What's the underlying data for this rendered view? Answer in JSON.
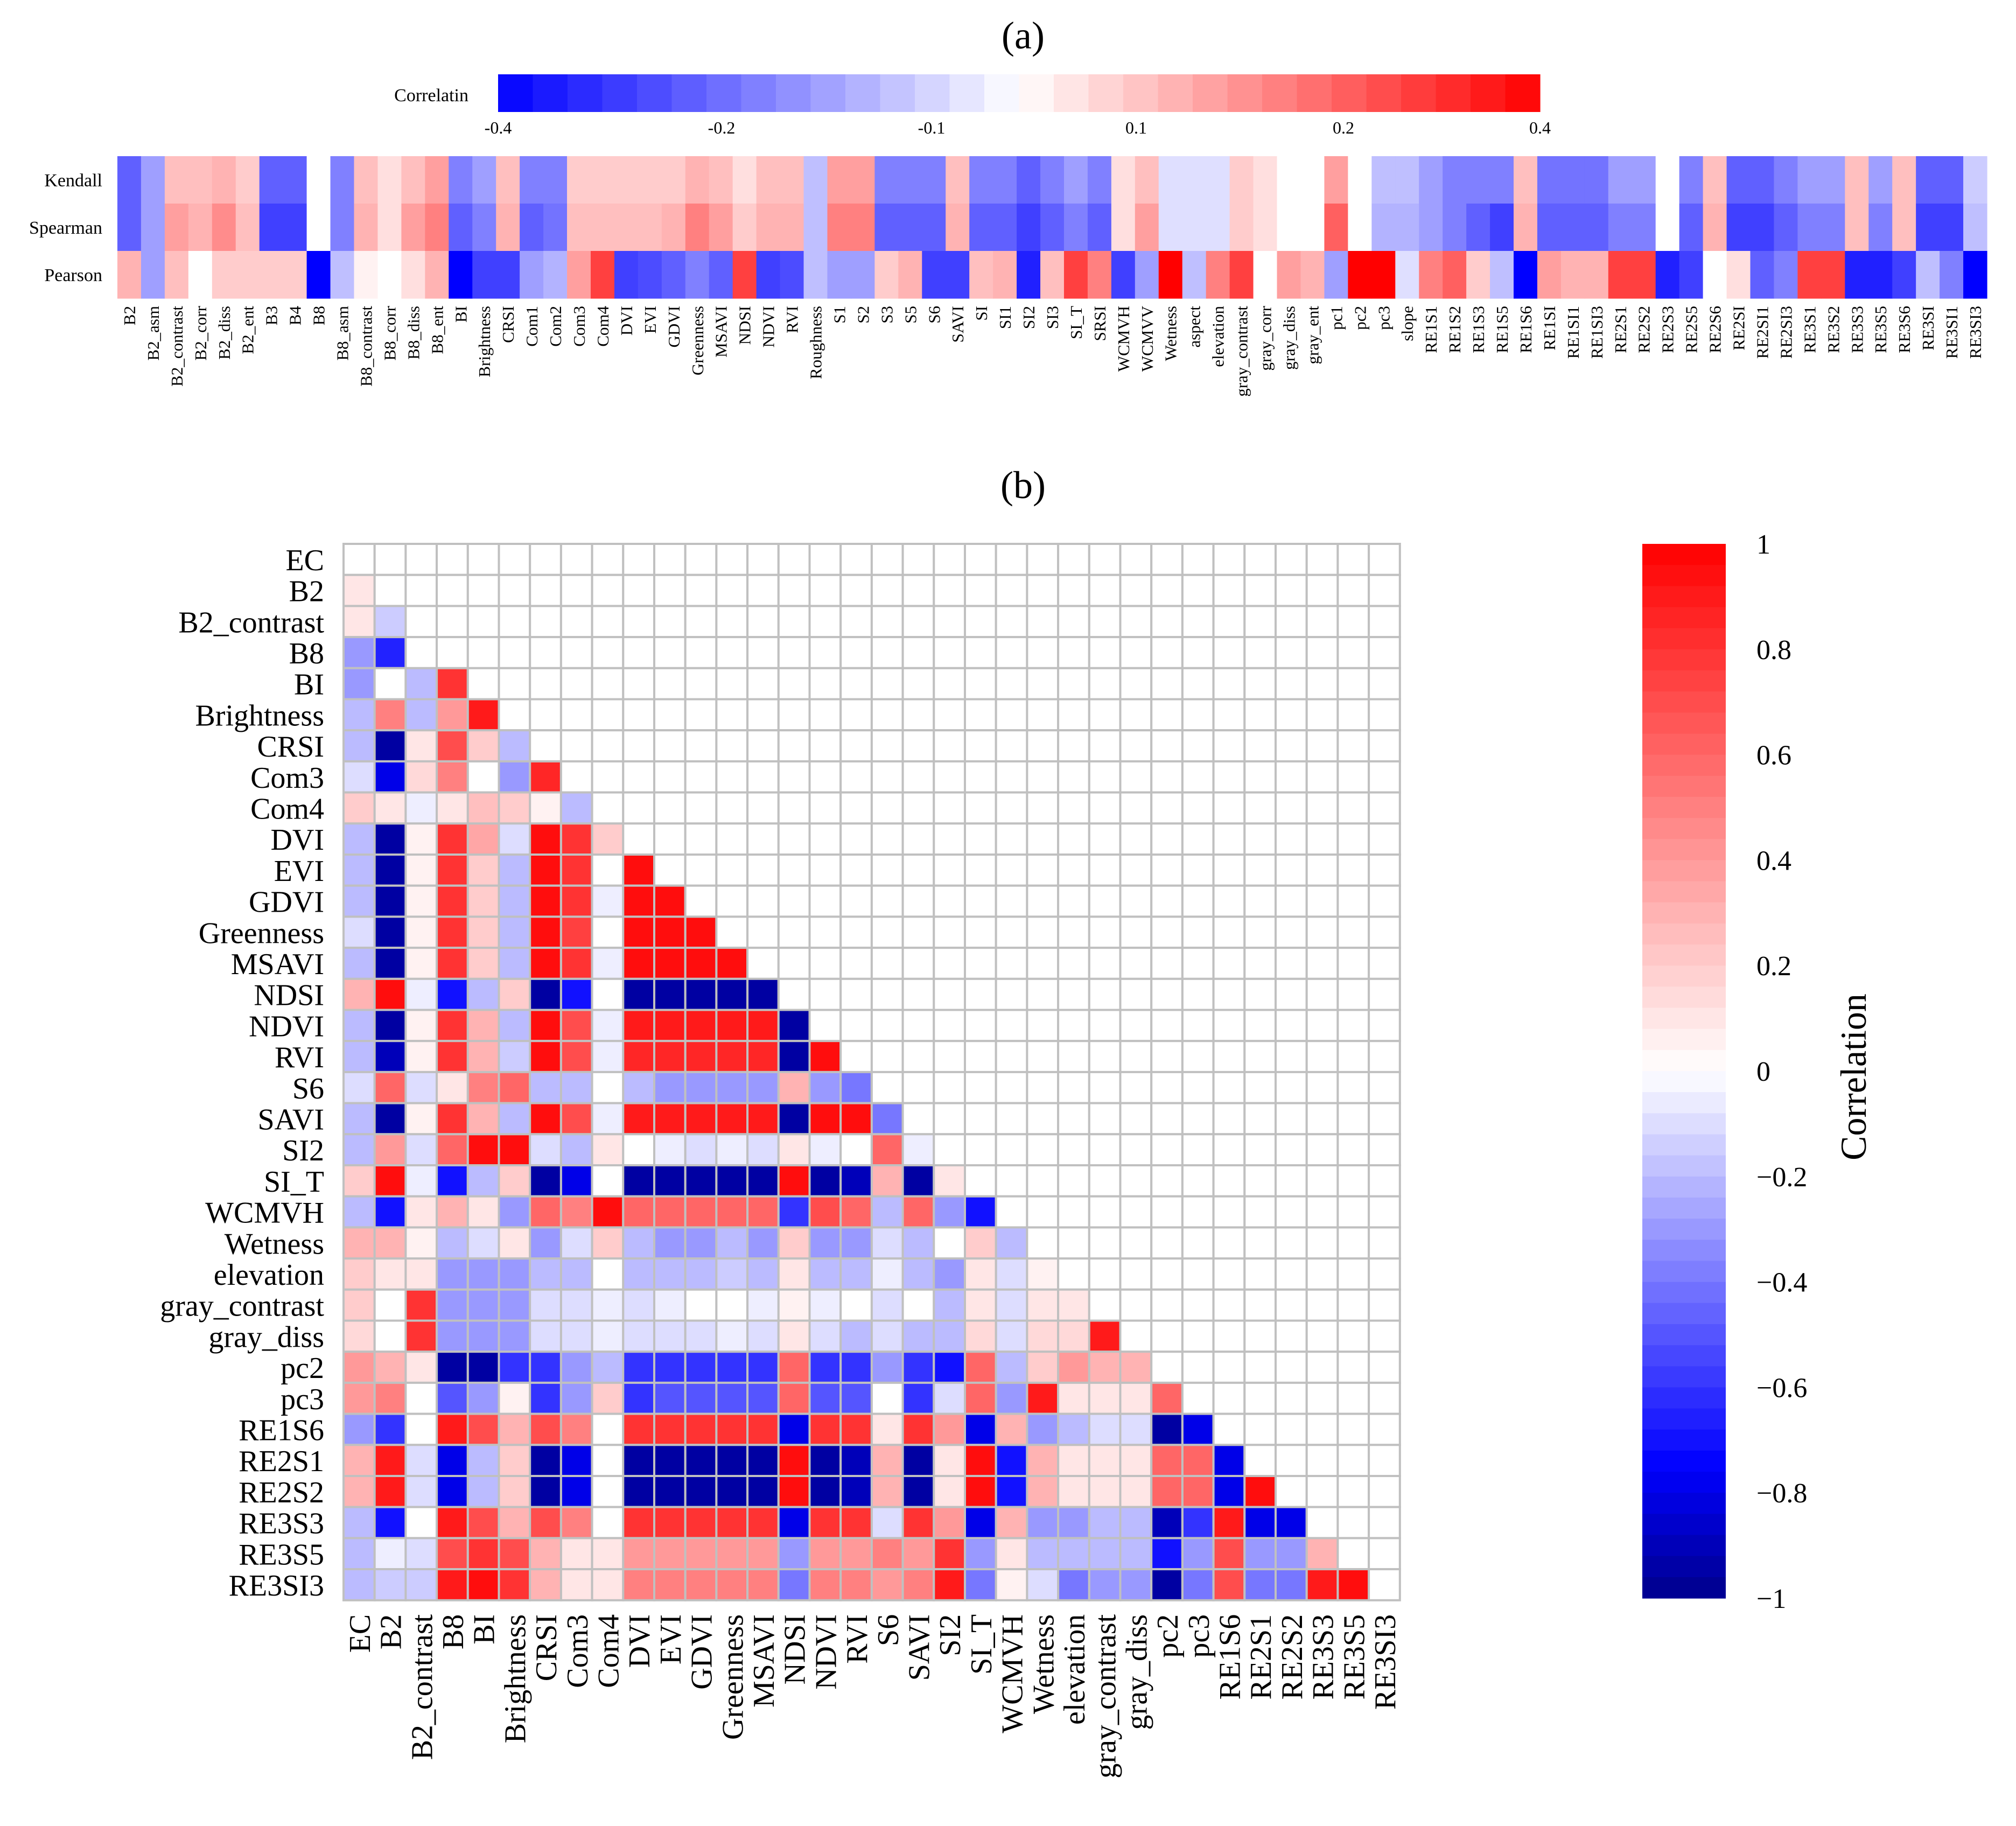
{
  "panel_a": {
    "label": "(a)",
    "colorbar_label": "Correlatin",
    "colorbar_ticks": [
      "-0.4",
      "-0.2",
      "-0.1",
      "0.1",
      "0.2",
      "0.4"
    ]
  },
  "panel_b": {
    "label": "(b)",
    "colorbar_label": "Correlation",
    "colorbar_ticks": [
      "1",
      "0.8",
      "0.6",
      "0.4",
      "0.2",
      "0",
      "−0.2",
      "−0.4",
      "−0.6",
      "−0.8",
      "−1"
    ]
  },
  "colors": {
    "negative": "#00008b",
    "mid_negative": "#0000ff",
    "zero": "#ffffff",
    "positive": "#ff0000",
    "grid": "#c0c0c0"
  },
  "chart_data": [
    {
      "type": "heatmap",
      "title": "(a)",
      "legend_label": "Correlatin",
      "vlim": [
        -0.4,
        0.4
      ],
      "rows": [
        "Kendall",
        "Spearman",
        "Pearson"
      ],
      "columns": [
        "B2",
        "B2_asm",
        "B2_contrast",
        "B2_corr",
        "B2_diss",
        "B2_ent",
        "B3",
        "B4",
        "B8",
        "B8_asm",
        "B8_contrast",
        "B8_corr",
        "B8_diss",
        "B8_ent",
        "BI",
        "Brightness",
        "CRSI",
        "Com1",
        "Com2",
        "Com3",
        "Com4",
        "DVI",
        "EVI",
        "GDVI",
        "Greenness",
        "MSAVI",
        "NDSI",
        "NDVI",
        "RVI",
        "Roughness",
        "S1",
        "S2",
        "S3",
        "S5",
        "S6",
        "SAVI",
        "SI",
        "SI1",
        "SI2",
        "SI3",
        "SI_T",
        "SRSI",
        "WCMVH",
        "WCMVV",
        "Wetness",
        "aspect",
        "elevation",
        "gray_contrast",
        "gray_corr",
        "gray_diss",
        "gray_ent",
        "pc1",
        "pc2",
        "pc3",
        "slope",
        "RE1S1",
        "RE1S2",
        "RE1S3",
        "RE1S5",
        "RE1S6",
        "RE1SI",
        "RE1SI1",
        "RE1SI3",
        "RE2S1",
        "RE2S2",
        "RE2S3",
        "RE2S5",
        "RE2S6",
        "RE2SI",
        "RE2SI1",
        "RE2SI3",
        "RE3S1",
        "RE3S2",
        "RE3S3",
        "RE3S5",
        "RE3S6",
        "RE3SI",
        "RE3SI1",
        "RE3SI3"
      ],
      "values": [
        [
          -0.25,
          -0.15,
          0.1,
          0.1,
          0.12,
          0.08,
          -0.25,
          -0.25,
          0.0,
          -0.2,
          0.1,
          0.05,
          0.1,
          0.15,
          -0.2,
          -0.15,
          0.1,
          -0.2,
          -0.2,
          0.08,
          0.08,
          0.08,
          0.08,
          0.08,
          0.12,
          0.1,
          0.05,
          0.1,
          0.1,
          -0.1,
          0.15,
          0.15,
          -0.2,
          -0.2,
          -0.2,
          0.1,
          -0.2,
          -0.2,
          -0.25,
          -0.2,
          -0.15,
          -0.2,
          0.05,
          0.1,
          -0.05,
          -0.05,
          -0.05,
          0.08,
          0.05,
          0.0,
          0.0,
          0.15,
          0.0,
          -0.1,
          -0.1,
          -0.15,
          -0.2,
          -0.2,
          -0.2,
          0.1,
          -0.22,
          -0.22,
          -0.22,
          -0.15,
          -0.15,
          0.0,
          -0.2,
          0.1,
          -0.25,
          -0.25,
          -0.2,
          -0.15,
          -0.15,
          0.1,
          -0.15,
          0.1,
          -0.25,
          -0.25,
          -0.08
        ],
        [
          -0.25,
          -0.15,
          0.15,
          0.12,
          0.18,
          0.1,
          -0.3,
          -0.3,
          0.0,
          -0.2,
          0.12,
          0.05,
          0.15,
          0.2,
          -0.25,
          -0.2,
          0.12,
          -0.25,
          -0.22,
          0.1,
          0.1,
          0.1,
          0.1,
          0.12,
          0.2,
          0.15,
          0.08,
          0.12,
          0.12,
          -0.1,
          0.2,
          0.2,
          -0.25,
          -0.25,
          -0.25,
          0.12,
          -0.25,
          -0.25,
          -0.3,
          -0.25,
          -0.2,
          -0.25,
          0.05,
          0.15,
          -0.05,
          -0.05,
          -0.05,
          0.08,
          0.05,
          0.0,
          0.0,
          0.25,
          0.0,
          -0.12,
          -0.12,
          -0.15,
          -0.2,
          -0.25,
          -0.3,
          0.12,
          -0.25,
          -0.25,
          -0.25,
          -0.2,
          -0.2,
          0.0,
          -0.25,
          0.12,
          -0.3,
          -0.3,
          -0.25,
          -0.2,
          -0.2,
          0.1,
          -0.2,
          0.1,
          -0.3,
          -0.3,
          -0.1
        ],
        [
          0.12,
          -0.15,
          0.1,
          0.0,
          0.08,
          0.08,
          0.08,
          0.08,
          -0.4,
          -0.1,
          0.02,
          0.0,
          0.05,
          0.12,
          -0.4,
          -0.3,
          -0.3,
          -0.15,
          -0.12,
          0.15,
          0.3,
          -0.3,
          -0.28,
          -0.25,
          -0.2,
          -0.25,
          0.3,
          -0.3,
          -0.28,
          -0.1,
          -0.15,
          -0.15,
          0.08,
          0.12,
          -0.3,
          -0.3,
          0.1,
          0.12,
          -0.35,
          0.1,
          0.3,
          0.2,
          -0.3,
          -0.15,
          0.4,
          -0.1,
          0.2,
          0.3,
          0.0,
          0.15,
          0.12,
          -0.15,
          0.4,
          0.4,
          -0.05,
          0.2,
          0.25,
          0.08,
          -0.1,
          -0.4,
          0.15,
          0.12,
          0.12,
          0.3,
          0.3,
          -0.35,
          -0.3,
          0.0,
          0.05,
          -0.25,
          -0.2,
          0.3,
          0.3,
          -0.35,
          -0.35,
          -0.3,
          -0.1,
          -0.2,
          -0.4
        ]
      ]
    },
    {
      "type": "heatmap",
      "title": "(b)",
      "legend_label": "Correlation",
      "vlim": [
        -1,
        1
      ],
      "labels": [
        "EC",
        "B2",
        "B2_contrast",
        "B8",
        "BI",
        "Brightness",
        "CRSI",
        "Com3",
        "Com4",
        "DVI",
        "EVI",
        "GDVI",
        "Greenness",
        "MSAVI",
        "NDSI",
        "NDVI",
        "RVI",
        "S6",
        "SAVI",
        "SI2",
        "SI_T",
        "WCMVH",
        "Wetness",
        "elevation",
        "gray_contrast",
        "gray_diss",
        "pc2",
        "pc3",
        "RE1S6",
        "RE2S1",
        "RE2S2",
        "RE3S3",
        "RE3S5",
        "RE3SI3"
      ],
      "values_lower_triangle": [
        [],
        [
          0.1
        ],
        [
          0.1,
          -0.15
        ],
        [
          -0.3,
          -0.65,
          0.0
        ],
        [
          -0.3,
          0.0,
          -0.2,
          0.8
        ],
        [
          -0.2,
          0.5,
          -0.2,
          0.4,
          0.9
        ],
        [
          -0.2,
          -0.95,
          0.1,
          0.7,
          0.2,
          -0.2
        ],
        [
          -0.1,
          -0.8,
          0.15,
          0.5,
          0.0,
          -0.3,
          0.85
        ],
        [
          0.2,
          0.1,
          -0.05,
          0.1,
          0.25,
          0.2,
          0.05,
          -0.2
        ],
        [
          -0.2,
          -0.95,
          0.05,
          0.8,
          0.35,
          -0.1,
          0.95,
          0.8,
          0.2
        ],
        [
          -0.2,
          -0.95,
          0.05,
          0.8,
          0.2,
          -0.2,
          0.95,
          0.8,
          0.0,
          0.95
        ],
        [
          -0.2,
          -0.95,
          0.05,
          0.8,
          0.2,
          -0.2,
          0.95,
          0.8,
          -0.05,
          0.95,
          0.95
        ],
        [
          -0.1,
          -0.95,
          0.05,
          0.8,
          0.2,
          -0.2,
          0.95,
          0.75,
          0.0,
          0.95,
          0.95,
          0.95
        ],
        [
          -0.2,
          -0.95,
          0.05,
          0.8,
          0.2,
          -0.2,
          0.95,
          0.8,
          -0.05,
          0.95,
          0.95,
          0.95,
          0.95
        ],
        [
          0.3,
          0.95,
          -0.05,
          -0.7,
          -0.2,
          0.2,
          -0.95,
          -0.7,
          0.0,
          -0.95,
          -0.95,
          -0.95,
          -0.95,
          -0.95
        ],
        [
          -0.2,
          -0.95,
          0.05,
          0.8,
          0.3,
          -0.2,
          0.95,
          0.7,
          -0.05,
          0.9,
          0.9,
          0.9,
          0.9,
          0.9,
          -0.95
        ],
        [
          -0.2,
          -0.9,
          0.05,
          0.8,
          0.3,
          -0.15,
          0.95,
          0.7,
          -0.05,
          0.85,
          0.85,
          0.85,
          0.85,
          0.85,
          -0.95,
          0.95
        ],
        [
          -0.1,
          0.6,
          -0.1,
          0.1,
          0.5,
          0.6,
          -0.2,
          -0.2,
          0.0,
          -0.2,
          -0.3,
          -0.3,
          -0.3,
          -0.3,
          0.3,
          -0.3,
          -0.4
        ],
        [
          -0.2,
          -0.95,
          0.05,
          0.8,
          0.3,
          -0.2,
          0.95,
          0.7,
          -0.05,
          0.9,
          0.9,
          0.9,
          0.9,
          0.9,
          -0.95,
          0.95,
          0.95,
          -0.4
        ],
        [
          -0.2,
          0.4,
          -0.1,
          0.6,
          0.95,
          0.95,
          -0.1,
          -0.2,
          0.1,
          0.0,
          -0.05,
          -0.1,
          -0.05,
          -0.1,
          0.1,
          -0.05,
          0.0,
          0.6,
          -0.05
        ],
        [
          0.2,
          0.95,
          -0.05,
          -0.7,
          -0.2,
          0.2,
          -0.95,
          -0.8,
          0.0,
          -0.95,
          -0.95,
          -0.95,
          -0.95,
          -0.95,
          0.95,
          -0.95,
          -0.9,
          0.3,
          -0.95,
          0.1
        ],
        [
          -0.2,
          -0.7,
          0.1,
          0.3,
          0.1,
          -0.3,
          0.6,
          0.5,
          0.95,
          0.6,
          0.6,
          0.6,
          0.6,
          0.6,
          -0.6,
          0.7,
          0.6,
          -0.2,
          0.6,
          -0.3,
          -0.7
        ],
        [
          0.3,
          0.3,
          0.05,
          -0.2,
          -0.1,
          0.1,
          -0.3,
          -0.1,
          0.2,
          -0.2,
          -0.3,
          -0.3,
          -0.2,
          -0.3,
          0.2,
          -0.3,
          -0.3,
          -0.1,
          -0.2,
          0.0,
          0.2,
          -0.2
        ],
        [
          0.2,
          0.1,
          0.1,
          -0.3,
          -0.3,
          -0.3,
          -0.2,
          -0.2,
          0.0,
          -0.2,
          -0.2,
          -0.2,
          -0.15,
          -0.2,
          0.1,
          -0.2,
          -0.2,
          -0.05,
          -0.2,
          -0.3,
          0.1,
          -0.1,
          0.05
        ],
        [
          0.2,
          0.0,
          0.8,
          -0.3,
          -0.3,
          -0.3,
          -0.1,
          -0.1,
          -0.05,
          -0.1,
          -0.05,
          0.0,
          0.0,
          -0.05,
          0.05,
          -0.05,
          0.0,
          -0.1,
          0.0,
          -0.2,
          0.1,
          -0.1,
          0.1,
          0.1
        ],
        [
          0.15,
          0.0,
          0.8,
          -0.3,
          -0.3,
          -0.3,
          -0.1,
          -0.1,
          -0.05,
          -0.1,
          -0.1,
          -0.1,
          -0.05,
          -0.1,
          0.1,
          -0.1,
          -0.2,
          -0.1,
          -0.2,
          -0.2,
          0.15,
          -0.1,
          0.15,
          0.15,
          0.9
        ],
        [
          0.4,
          0.3,
          0.1,
          -0.95,
          -0.95,
          -0.6,
          -0.6,
          -0.3,
          -0.2,
          -0.6,
          -0.6,
          -0.6,
          -0.6,
          -0.6,
          0.6,
          -0.6,
          -0.6,
          -0.3,
          -0.6,
          -0.7,
          0.6,
          -0.2,
          0.2,
          0.4,
          0.3,
          0.3
        ],
        [
          0.4,
          0.5,
          0.0,
          -0.5,
          -0.3,
          0.05,
          -0.6,
          -0.3,
          0.2,
          -0.6,
          -0.5,
          -0.5,
          -0.5,
          -0.5,
          0.6,
          -0.5,
          -0.5,
          0.0,
          -0.6,
          -0.1,
          0.6,
          -0.3,
          0.9,
          0.1,
          0.1,
          0.1,
          0.6
        ],
        [
          -0.3,
          -0.6,
          0.0,
          0.9,
          0.7,
          0.3,
          0.7,
          0.5,
          0.0,
          0.8,
          0.8,
          0.8,
          0.8,
          0.8,
          -0.8,
          0.8,
          0.8,
          0.1,
          0.8,
          0.4,
          -0.8,
          0.3,
          -0.3,
          -0.2,
          -0.1,
          -0.1,
          -0.95,
          -0.8
        ],
        [
          0.3,
          0.9,
          -0.1,
          -0.8,
          -0.2,
          0.2,
          -0.95,
          -0.8,
          0.0,
          -0.95,
          -0.95,
          -0.95,
          -0.95,
          -0.95,
          0.95,
          -0.95,
          -0.9,
          0.3,
          -0.95,
          0.1,
          0.95,
          -0.7,
          0.3,
          0.1,
          0.1,
          0.1,
          0.6,
          0.6,
          -0.8
        ],
        [
          0.3,
          0.9,
          -0.1,
          -0.8,
          -0.2,
          0.2,
          -0.95,
          -0.8,
          0.0,
          -0.95,
          -0.95,
          -0.95,
          -0.95,
          -0.95,
          0.95,
          -0.95,
          -0.9,
          0.3,
          -0.95,
          0.1,
          0.95,
          -0.7,
          0.3,
          0.1,
          0.1,
          0.1,
          0.6,
          0.6,
          -0.8,
          0.95
        ],
        [
          -0.2,
          -0.7,
          0.0,
          0.9,
          0.7,
          0.3,
          0.7,
          0.5,
          0.0,
          0.8,
          0.8,
          0.8,
          0.8,
          0.8,
          -0.8,
          0.8,
          0.8,
          -0.1,
          0.8,
          0.4,
          -0.8,
          0.3,
          -0.3,
          -0.3,
          -0.2,
          -0.2,
          -0.9,
          -0.6,
          0.9,
          -0.8,
          -0.8
        ],
        [
          -0.2,
          -0.05,
          -0.1,
          0.7,
          0.8,
          0.7,
          0.3,
          0.1,
          0.1,
          0.4,
          0.4,
          0.4,
          0.4,
          0.4,
          -0.3,
          0.4,
          0.4,
          0.5,
          0.4,
          0.8,
          -0.3,
          0.1,
          -0.2,
          -0.2,
          -0.2,
          -0.2,
          -0.7,
          -0.3,
          0.7,
          -0.3,
          -0.3,
          0.3
        ],
        [
          -0.2,
          -0.15,
          -0.15,
          0.9,
          0.95,
          0.8,
          0.3,
          0.1,
          0.1,
          0.5,
          0.5,
          0.5,
          0.5,
          0.5,
          -0.4,
          0.5,
          0.5,
          0.4,
          0.5,
          0.9,
          -0.4,
          0.05,
          -0.1,
          -0.4,
          -0.3,
          -0.3,
          -0.95,
          -0.4,
          0.7,
          -0.4,
          -0.4,
          0.9,
          0.95
        ]
      ]
    }
  ]
}
